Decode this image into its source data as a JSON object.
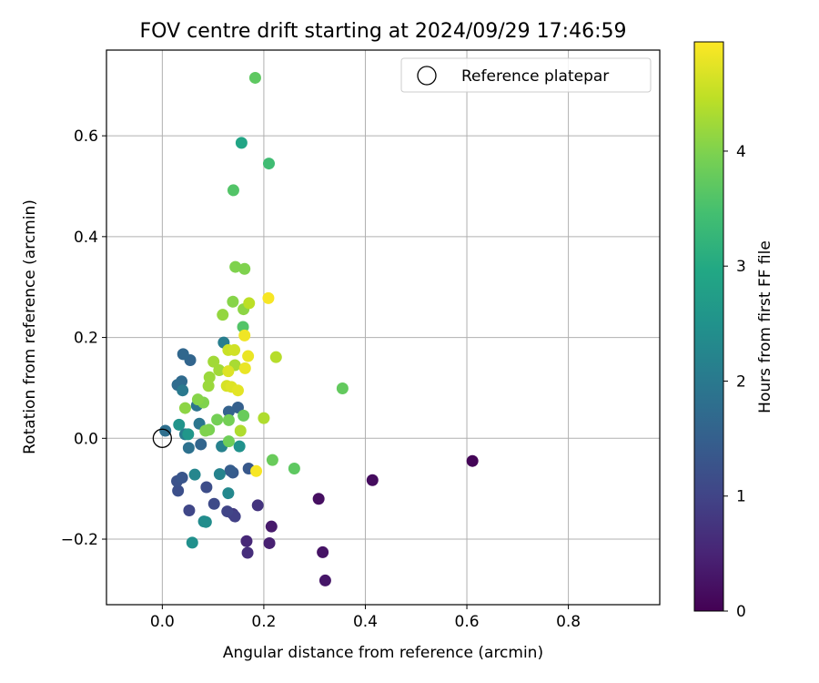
{
  "chart_data": {
    "type": "scatter",
    "title": "FOV centre drift starting at 2024/09/29 17:46:59",
    "xlabel": "Angular distance from reference (arcmin)",
    "ylabel": "Rotation from reference (arcmin)",
    "xlim": [
      -0.11,
      0.98
    ],
    "ylim": [
      -0.33,
      0.77
    ],
    "xticks": [
      0.0,
      0.2,
      0.4,
      0.6,
      0.8
    ],
    "xtick_labels": [
      "0.0",
      "0.2",
      "0.4",
      "0.6",
      "0.8"
    ],
    "yticks": [
      -0.2,
      0.0,
      0.2,
      0.4,
      0.6
    ],
    "ytick_labels": [
      "−0.2",
      "0.0",
      "0.2",
      "0.4",
      "0.6"
    ],
    "grid": true,
    "legend": {
      "placement": "top-right",
      "entries": [
        "Reference platepar"
      ]
    },
    "reference_point": {
      "x": 0.0,
      "y": 0.0,
      "label": "Reference platepar"
    },
    "colorbar": {
      "label": "Hours from first FF file",
      "range": [
        0,
        4.95
      ],
      "ticks": [
        0,
        1,
        2,
        3,
        4
      ],
      "tick_labels": [
        "0",
        "1",
        "2",
        "3",
        "4"
      ],
      "colormap": "viridis"
    },
    "series": [
      {
        "points": [
          {
            "x": 0.611,
            "y": -0.045,
            "c": 0.05
          },
          {
            "x": 0.414,
            "y": -0.083,
            "c": 0.15
          },
          {
            "x": 0.308,
            "y": -0.12,
            "c": 0.2
          },
          {
            "x": 0.316,
            "y": -0.226,
            "c": 0.25
          },
          {
            "x": 0.321,
            "y": -0.282,
            "c": 0.3
          },
          {
            "x": 0.215,
            "y": -0.175,
            "c": 0.35
          },
          {
            "x": 0.211,
            "y": -0.208,
            "c": 0.45
          },
          {
            "x": 0.166,
            "y": -0.204,
            "c": 0.55
          },
          {
            "x": 0.168,
            "y": -0.227,
            "c": 0.65
          },
          {
            "x": 0.188,
            "y": -0.133,
            "c": 0.75
          },
          {
            "x": 0.139,
            "y": -0.15,
            "c": 0.85
          },
          {
            "x": 0.143,
            "y": -0.155,
            "c": 0.95
          },
          {
            "x": 0.128,
            "y": -0.145,
            "c": 1.0
          },
          {
            "x": 0.053,
            "y": -0.143,
            "c": 1.05
          },
          {
            "x": 0.102,
            "y": -0.13,
            "c": 1.1
          },
          {
            "x": 0.087,
            "y": -0.097,
            "c": 1.15
          },
          {
            "x": 0.031,
            "y": -0.104,
            "c": 1.2
          },
          {
            "x": 0.029,
            "y": -0.085,
            "c": 1.25
          },
          {
            "x": 0.039,
            "y": -0.078,
            "c": 1.3
          },
          {
            "x": 0.17,
            "y": -0.06,
            "c": 1.35
          },
          {
            "x": 0.139,
            "y": -0.068,
            "c": 1.4
          },
          {
            "x": 0.134,
            "y": -0.064,
            "c": 1.45
          },
          {
            "x": 0.149,
            "y": 0.061,
            "c": 1.5
          },
          {
            "x": 0.131,
            "y": 0.053,
            "c": 1.55
          },
          {
            "x": 0.076,
            "y": -0.012,
            "c": 1.6
          },
          {
            "x": 0.055,
            "y": 0.155,
            "c": 1.6
          },
          {
            "x": 0.041,
            "y": 0.167,
            "c": 1.65
          },
          {
            "x": 0.038,
            "y": 0.113,
            "c": 1.7
          },
          {
            "x": 0.03,
            "y": 0.106,
            "c": 1.75
          },
          {
            "x": 0.006,
            "y": 0.015,
            "c": 1.8
          },
          {
            "x": 0.052,
            "y": -0.019,
            "c": 1.85
          },
          {
            "x": 0.068,
            "y": 0.065,
            "c": 1.9
          },
          {
            "x": 0.073,
            "y": 0.029,
            "c": 1.95
          },
          {
            "x": 0.04,
            "y": 0.095,
            "c": 2.0
          },
          {
            "x": 0.045,
            "y": 0.008,
            "c": 2.05
          },
          {
            "x": 0.121,
            "y": 0.19,
            "c": 2.1
          },
          {
            "x": 0.117,
            "y": -0.016,
            "c": 2.15
          },
          {
            "x": 0.113,
            "y": -0.071,
            "c": 2.2
          },
          {
            "x": 0.064,
            "y": -0.072,
            "c": 2.25
          },
          {
            "x": 0.13,
            "y": -0.109,
            "c": 2.3
          },
          {
            "x": 0.082,
            "y": -0.165,
            "c": 2.35
          },
          {
            "x": 0.086,
            "y": -0.166,
            "c": 2.4
          },
          {
            "x": 0.059,
            "y": -0.207,
            "c": 2.45
          },
          {
            "x": 0.152,
            "y": -0.016,
            "c": 2.5
          },
          {
            "x": 0.033,
            "y": 0.027,
            "c": 2.55
          },
          {
            "x": 0.051,
            "y": 0.008,
            "c": 2.6
          },
          {
            "x": 0.156,
            "y": 0.586,
            "c": 2.9
          },
          {
            "x": 0.21,
            "y": 0.545,
            "c": 3.4
          },
          {
            "x": 0.14,
            "y": 0.492,
            "c": 3.6
          },
          {
            "x": 0.183,
            "y": 0.715,
            "c": 3.7
          },
          {
            "x": 0.159,
            "y": 0.221,
            "c": 3.6
          },
          {
            "x": 0.26,
            "y": -0.06,
            "c": 3.7
          },
          {
            "x": 0.217,
            "y": -0.043,
            "c": 3.8
          },
          {
            "x": 0.355,
            "y": 0.099,
            "c": 3.75
          },
          {
            "x": 0.16,
            "y": 0.045,
            "c": 3.8
          },
          {
            "x": 0.131,
            "y": -0.006,
            "c": 3.85
          },
          {
            "x": 0.131,
            "y": 0.036,
            "c": 3.9
          },
          {
            "x": 0.108,
            "y": 0.037,
            "c": 3.9
          },
          {
            "x": 0.092,
            "y": 0.017,
            "c": 3.95
          },
          {
            "x": 0.085,
            "y": 0.015,
            "c": 4.0
          },
          {
            "x": 0.081,
            "y": 0.071,
            "c": 4.0
          },
          {
            "x": 0.07,
            "y": 0.077,
            "c": 4.05
          },
          {
            "x": 0.045,
            "y": 0.06,
            "c": 4.1
          },
          {
            "x": 0.144,
            "y": 0.34,
            "c": 4.0
          },
          {
            "x": 0.162,
            "y": 0.336,
            "c": 4.0
          },
          {
            "x": 0.139,
            "y": 0.271,
            "c": 4.05
          },
          {
            "x": 0.16,
            "y": 0.256,
            "c": 4.1
          },
          {
            "x": 0.119,
            "y": 0.245,
            "c": 4.15
          },
          {
            "x": 0.093,
            "y": 0.121,
            "c": 4.2
          },
          {
            "x": 0.091,
            "y": 0.104,
            "c": 4.2
          },
          {
            "x": 0.101,
            "y": 0.152,
            "c": 4.25
          },
          {
            "x": 0.112,
            "y": 0.135,
            "c": 4.25
          },
          {
            "x": 0.143,
            "y": 0.145,
            "c": 4.3
          },
          {
            "x": 0.154,
            "y": 0.015,
            "c": 4.35
          },
          {
            "x": 0.2,
            "y": 0.04,
            "c": 4.35
          },
          {
            "x": 0.224,
            "y": 0.161,
            "c": 4.4
          },
          {
            "x": 0.171,
            "y": 0.268,
            "c": 4.45
          },
          {
            "x": 0.13,
            "y": 0.175,
            "c": 4.55
          },
          {
            "x": 0.142,
            "y": 0.175,
            "c": 4.6
          },
          {
            "x": 0.127,
            "y": 0.104,
            "c": 4.65
          },
          {
            "x": 0.136,
            "y": 0.102,
            "c": 4.7
          },
          {
            "x": 0.13,
            "y": 0.133,
            "c": 4.7
          },
          {
            "x": 0.149,
            "y": 0.095,
            "c": 4.75
          },
          {
            "x": 0.169,
            "y": 0.163,
            "c": 4.8
          },
          {
            "x": 0.163,
            "y": 0.139,
            "c": 4.8
          },
          {
            "x": 0.162,
            "y": 0.204,
            "c": 4.85
          },
          {
            "x": 0.209,
            "y": 0.278,
            "c": 4.9
          },
          {
            "x": 0.185,
            "y": -0.065,
            "c": 4.9
          }
        ]
      }
    ]
  }
}
